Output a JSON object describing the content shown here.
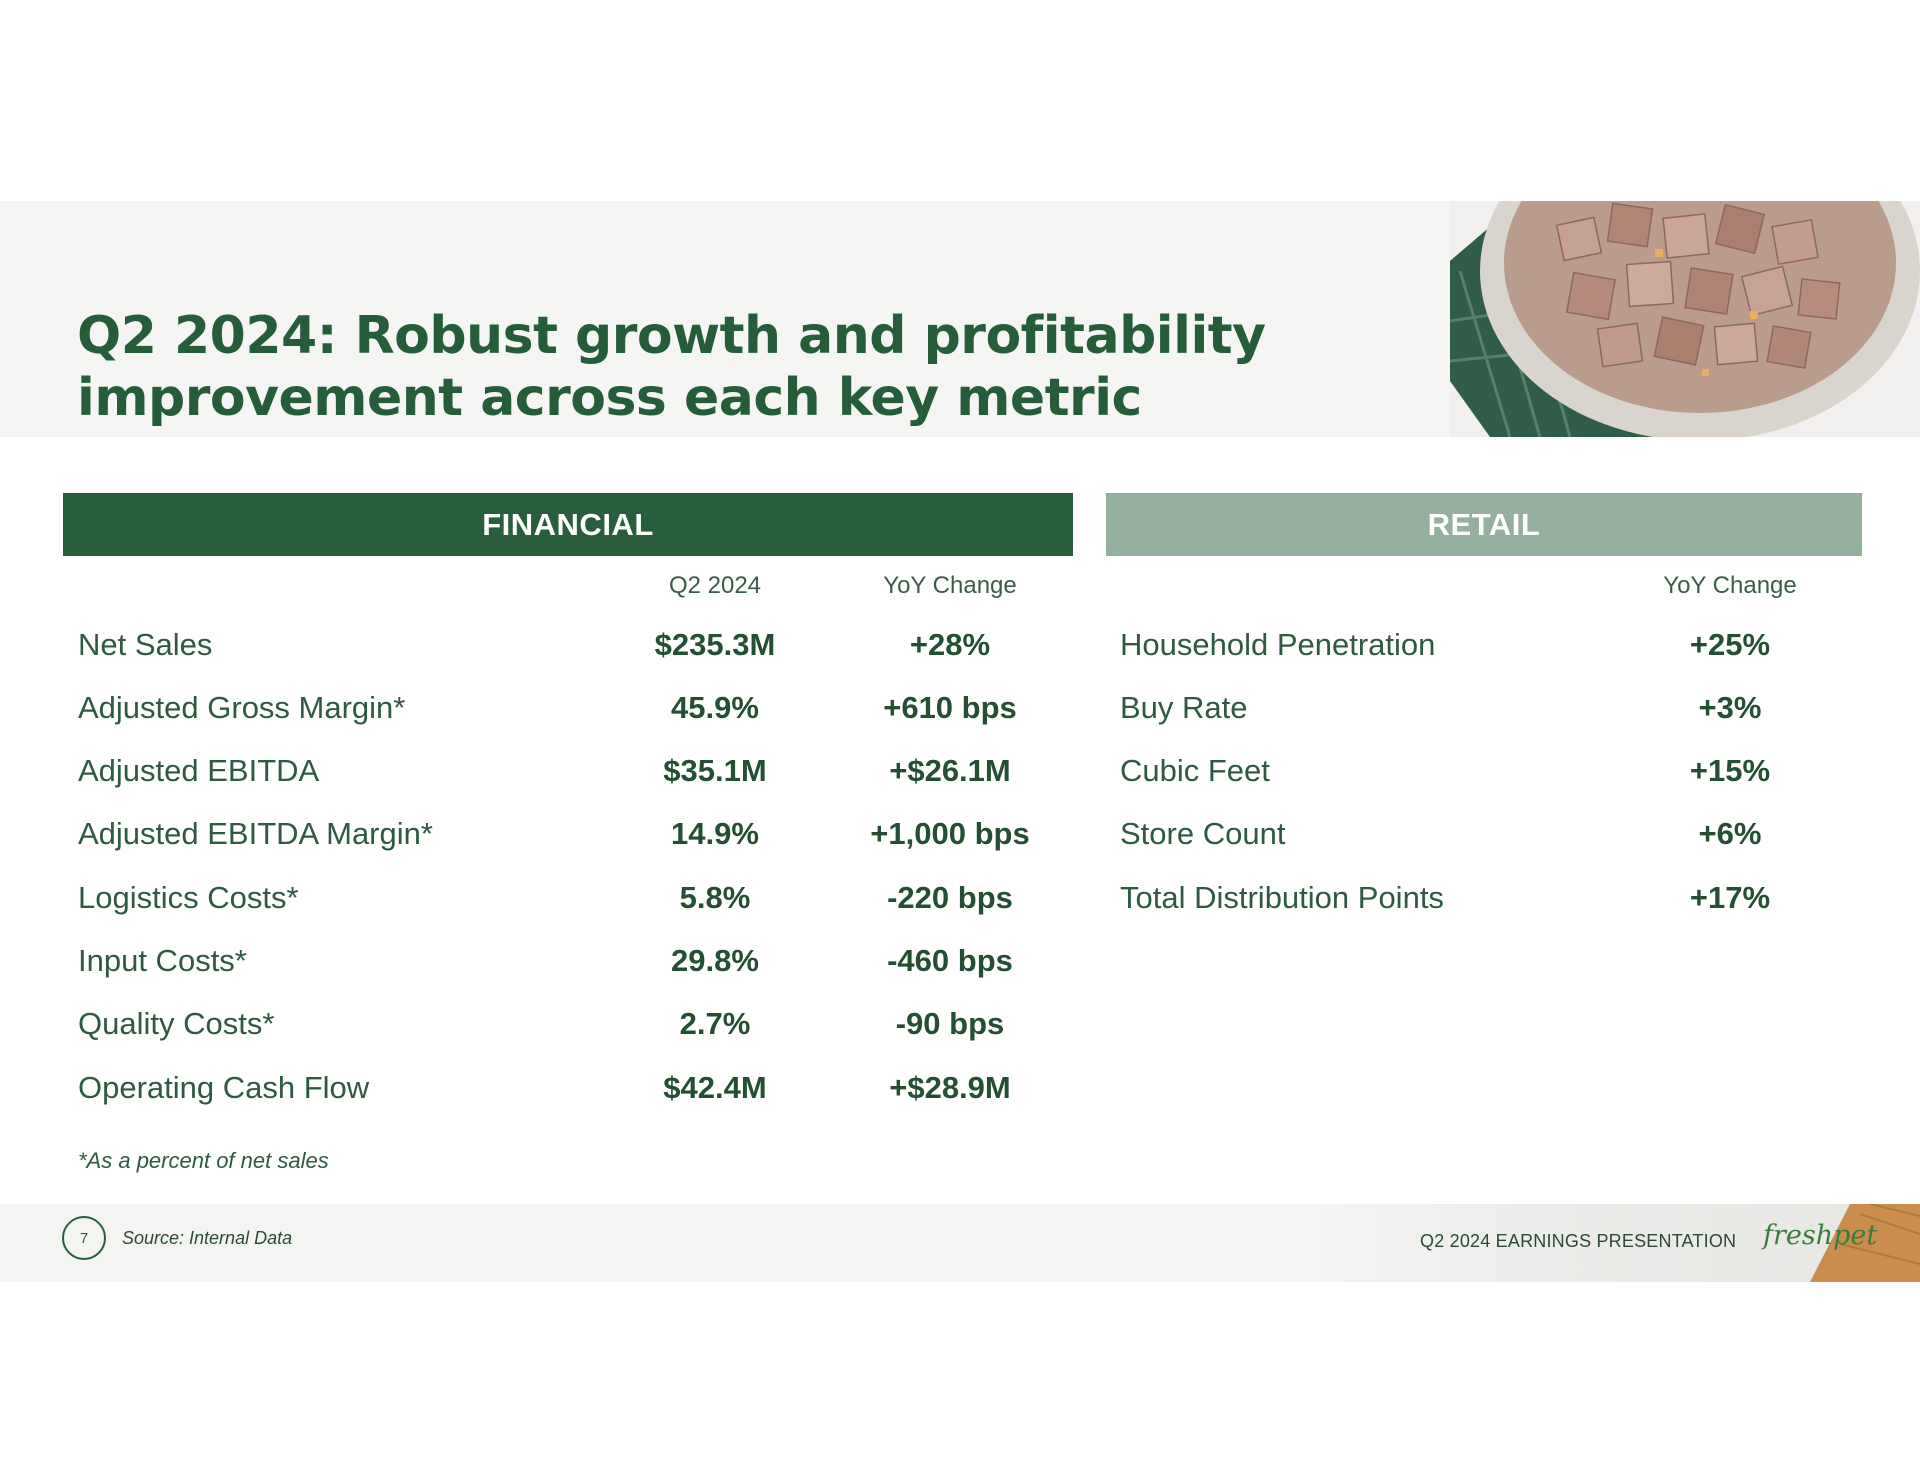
{
  "title_line1": "Q2 2024: Robust growth and profitability",
  "title_line2": "improvement across each key metric",
  "financial": {
    "header": "FINANCIAL",
    "col_period": "Q2 2024",
    "col_change": "YoY Change",
    "rows": [
      {
        "label": "Net Sales",
        "value": "$235.3M",
        "change": "+28%"
      },
      {
        "label": "Adjusted Gross Margin*",
        "value": "45.9%",
        "change": "+610 bps"
      },
      {
        "label": "Adjusted EBITDA",
        "value": "$35.1M",
        "change": "+$26.1M"
      },
      {
        "label": "Adjusted EBITDA Margin*",
        "value": "14.9%",
        "change": "+1,000 bps"
      },
      {
        "label": "Logistics Costs*",
        "value": "5.8%",
        "change": "-220 bps"
      },
      {
        "label": "Input Costs*",
        "value": "29.8%",
        "change": "-460 bps"
      },
      {
        "label": "Quality Costs*",
        "value": "2.7%",
        "change": "-90 bps"
      },
      {
        "label": "Operating Cash Flow",
        "value": "$42.4M",
        "change": "+$28.9M"
      }
    ],
    "footnote": "*As a percent of net sales"
  },
  "retail": {
    "header": "RETAIL",
    "col_change": "YoY Change",
    "rows": [
      {
        "label": "Household Penetration",
        "change": "+25%"
      },
      {
        "label": "Buy Rate",
        "change": "+3%"
      },
      {
        "label": "Cubic Feet",
        "change": "+15%"
      },
      {
        "label": "Store Count",
        "change": "+6%"
      },
      {
        "label": "Total Distribution Points",
        "change": "+17%"
      }
    ]
  },
  "footer": {
    "page_number": "7",
    "source": "Source: Internal Data",
    "presentation": "Q2 2024 EARNINGS PRESENTATION",
    "brand": "freshpet"
  },
  "colors": {
    "brand_green": "#285e3c",
    "retail_green": "#95b09e",
    "text_green": "#244f33"
  },
  "icons": [
    "bowl-photo-icon",
    "page-number-circle"
  ]
}
